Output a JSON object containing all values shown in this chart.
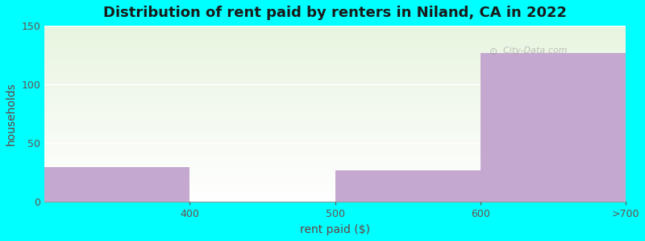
{
  "title": "Distribution of rent paid by renters in Niland, CA in 2022",
  "xlabel": "rent paid ($)",
  "ylabel": "households",
  "tick_labels": [
    "400",
    "500",
    "600",
    ">700"
  ],
  "values": [
    30,
    0,
    27,
    127
  ],
  "bar_color": "#c4a8d0",
  "ylim": [
    0,
    150
  ],
  "yticks": [
    0,
    50,
    100,
    150
  ],
  "background_outer": "#00ffff",
  "background_inner_top": "#e8f5e0",
  "background_inner_bottom": "#ffffff",
  "grid_color": "#ffffff",
  "title_color": "#1a1a1a",
  "axis_label_color": "#6b4040",
  "tick_color": "#6b5050",
  "title_fontsize": 13,
  "label_fontsize": 10,
  "tick_fontsize": 9,
  "watermark": "City-Data.com"
}
